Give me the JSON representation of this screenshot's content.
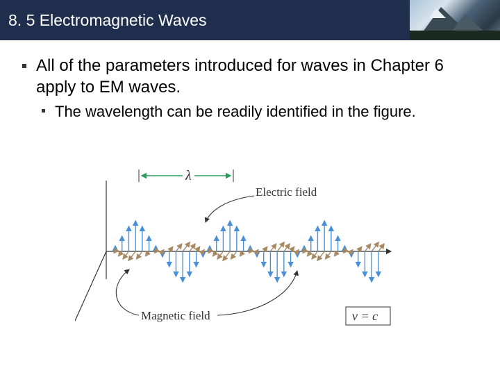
{
  "header": {
    "title": "8. 5 Electromagnetic Waves",
    "background_color": "#1f2e4d",
    "title_color": "#ffffff",
    "title_fontsize": 23
  },
  "bullets": {
    "main": "All of the parameters introduced for waves in Chapter 6 apply to EM waves.",
    "sub": "The wavelength can be readily identified in the figure."
  },
  "diagram": {
    "type": "infographic",
    "lambda_symbol": "λ",
    "electric_field_label": "Electric field",
    "magnetic_field_label": "Magnetic field",
    "velocity_equation": "v = c",
    "electric_color": "#4a90d8",
    "magnetic_color": "#a88860",
    "axis_color": "#333333",
    "marker_color": "#2a9a5a",
    "arrow_color": "#333333",
    "background_color": "#ffffff",
    "wave_cycles": 3,
    "electric_amplitudes": [
      8,
      22,
      36,
      44,
      36,
      22,
      8,
      -8,
      -22,
      -36,
      -44,
      -36,
      -22,
      -8
    ],
    "magnetic_proj_scale": 0.55,
    "axis_line_width": 1.2,
    "field_arrow_width": 1.4
  }
}
